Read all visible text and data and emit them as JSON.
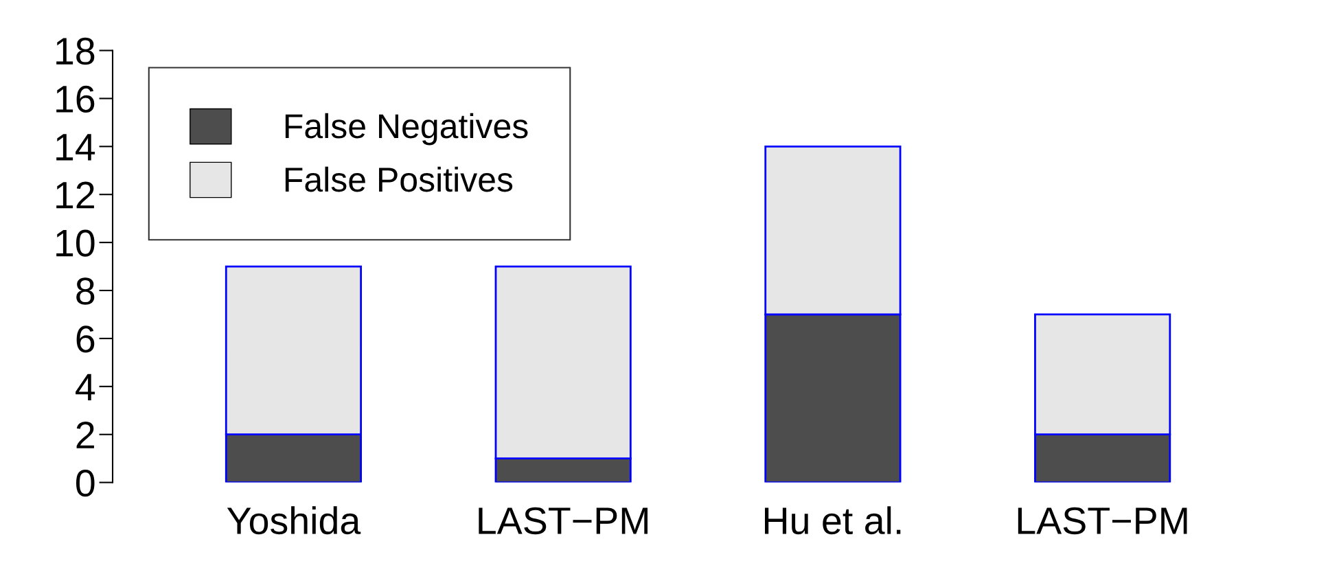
{
  "chart_data": {
    "type": "bar",
    "stacked": true,
    "categories": [
      "Yoshida",
      "LAST−PM",
      "Hu et al.",
      "LAST−PM"
    ],
    "series": [
      {
        "name": "False Negatives",
        "color": "#4d4d4d",
        "values": [
          2,
          1,
          7,
          2
        ]
      },
      {
        "name": "False Positives",
        "color": "#e6e6e6",
        "values": [
          7,
          8,
          7,
          5
        ]
      }
    ],
    "ylim": [
      0,
      18
    ],
    "yticks": [
      0,
      2,
      4,
      6,
      8,
      10,
      12,
      14,
      16,
      18
    ],
    "grid": false,
    "legend": "top left"
  }
}
